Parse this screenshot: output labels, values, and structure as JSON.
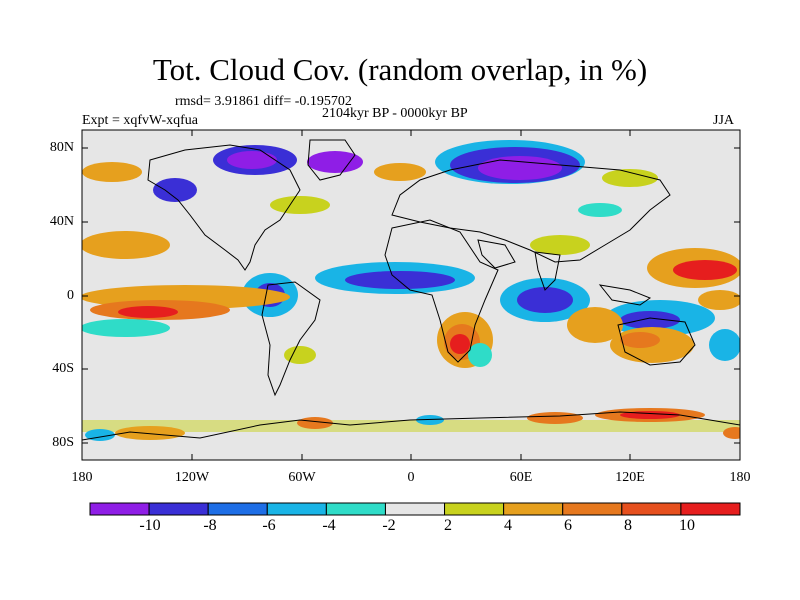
{
  "header": {
    "title": "Tot. Cloud Cov. (random overlap, in %)",
    "stats": "rmsd= 3.91861 diff= -0.195702",
    "period": "2104kyr BP - 0000kyr BP",
    "experiment": "Expt = xqfvW-xqfua",
    "season": "JJA"
  },
  "axes": {
    "lat_labels": [
      "80N",
      "40N",
      "0",
      "40S",
      "80S"
    ],
    "lon_labels": [
      "180",
      "120W",
      "60W",
      "0",
      "60E",
      "120E",
      "180"
    ]
  },
  "colorbar": {
    "labels": [
      "-10",
      "-8",
      "-6",
      "-4",
      "-2",
      "2",
      "4",
      "6",
      "8",
      "10"
    ],
    "colors": [
      "#8f1ee6",
      "#3a2fd6",
      "#1e6ee6",
      "#19b4e6",
      "#2fdcc8",
      "#e6e6e6",
      "#c8d21e",
      "#e6a01e",
      "#e6781e",
      "#e6501e",
      "#e61e1e"
    ]
  },
  "map": {
    "background": "#e6e6e6",
    "coastline_color": "#000000"
  }
}
